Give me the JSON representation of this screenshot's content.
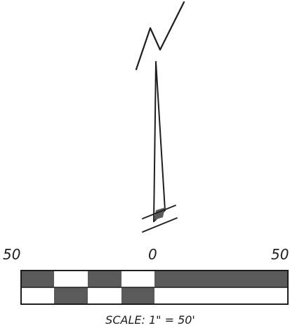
{
  "north_arrow": {
    "symbol": "north-arrow-with-N-mark"
  },
  "scale_bar": {
    "tick_labels": [
      "50",
      "0",
      "50"
    ],
    "caption": "SCALE: 1\" = 50'",
    "colors": {
      "dark_fill": "#5a5a5a",
      "light_fill": "#ffffff",
      "outline": "#1e1e1e"
    }
  }
}
